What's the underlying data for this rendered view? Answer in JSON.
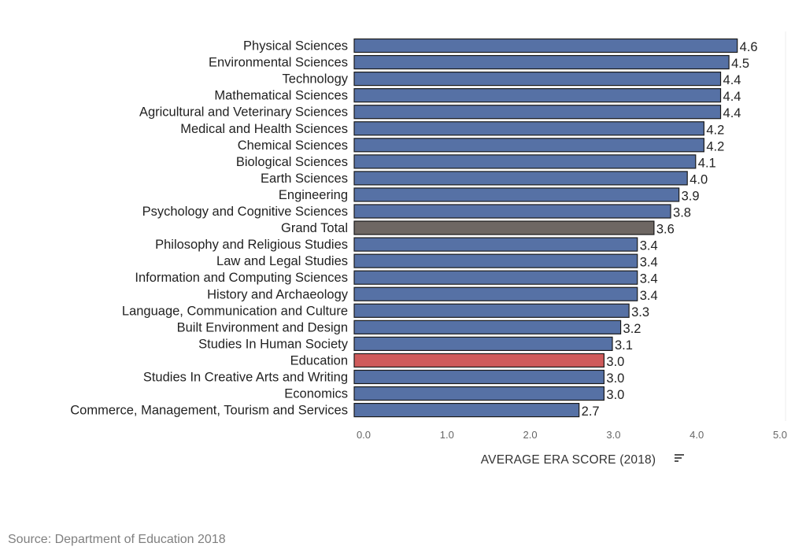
{
  "chart_data": {
    "type": "bar",
    "orientation": "horizontal",
    "categories": [
      "Physical Sciences",
      "Environmental Sciences",
      "Technology",
      "Mathematical Sciences",
      "Agricultural and Veterinary Sciences",
      "Medical and Health Sciences",
      "Chemical Sciences",
      "Biological Sciences",
      "Earth Sciences",
      "Engineering",
      "Psychology and Cognitive Sciences",
      "Grand Total",
      "Philosophy and Religious Studies",
      "Law and Legal Studies",
      "Information and Computing Sciences",
      "History and Archaeology",
      "Language, Communication and Culture",
      "Built Environment and Design",
      "Studies In Human Society",
      "Education",
      "Studies In Creative Arts and Writing",
      "Economics",
      "Commerce, Management, Tourism and Services"
    ],
    "values": [
      4.6,
      4.5,
      4.4,
      4.4,
      4.4,
      4.2,
      4.2,
      4.1,
      4.0,
      3.9,
      3.8,
      3.6,
      3.4,
      3.4,
      3.4,
      3.4,
      3.3,
      3.2,
      3.1,
      3.0,
      3.0,
      3.0,
      2.7
    ],
    "value_labels": [
      "4.6",
      "4.5",
      "4.4",
      "4.4",
      "4.4",
      "4.2",
      "4.2",
      "4.1",
      "4.0",
      "3.9",
      "3.8",
      "3.6",
      "3.4",
      "3.4",
      "3.4",
      "3.4",
      "3.3",
      "3.2",
      "3.1",
      "3.0",
      "3.0",
      "3.0",
      "2.7"
    ],
    "highlight": {
      "Grand Total": "#6e6763",
      "Education": "#cf5b5b"
    },
    "bar_color": "#5671a5",
    "xlabel": "AVERAGE ERA SCORE (2018)",
    "xlim": [
      0,
      5
    ],
    "xticks": [
      "0.0",
      "1.0",
      "2.0",
      "3.0",
      "4.0",
      "5.0"
    ],
    "grid": false
  },
  "source": "Source: Department of Education 2018",
  "sort_icon": "sort-descending-icon"
}
